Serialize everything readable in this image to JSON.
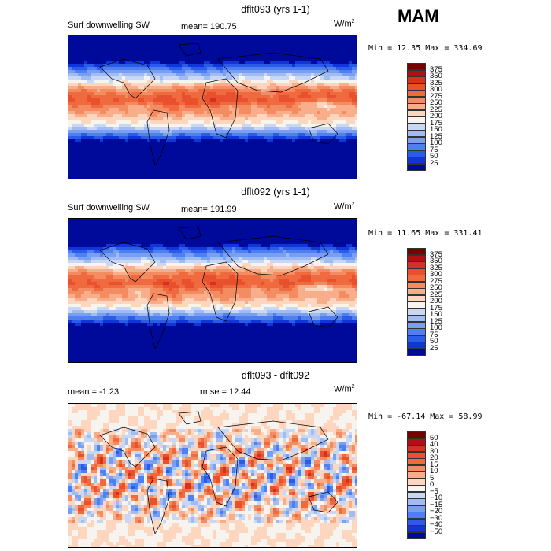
{
  "season": "MAM",
  "panels": [
    {
      "title": "dflt093 (yrs 1-1)",
      "left_label": "Surf downwelling SW",
      "mean_label": "mean= 190.75",
      "units": "W/m",
      "units_sup": "2",
      "minmax": "Min =  12.35 Max = 334.69"
    },
    {
      "title": "dflt092 (yrs 1-1)",
      "left_label": "Surf downwelling SW",
      "mean_label": "mean= 191.99",
      "units": "W/m",
      "units_sup": "2",
      "minmax": "Min =  11.65 Max = 331.41"
    },
    {
      "title": "dflt093 - dflt092",
      "left_label": "mean =   -1.23",
      "mean_label": "rmse =  12.44",
      "units": "W/m",
      "units_sup": "2",
      "minmax": "Min = -67.14 Max =  58.99"
    }
  ],
  "chart_data": [
    {
      "type": "heatmap",
      "title": "dflt093 (yrs 1-1)",
      "variable": "Surf downwelling SW",
      "units": "W/m2",
      "mean": 190.75,
      "min": 12.35,
      "max": 334.69,
      "colorbar_levels": [
        375,
        350,
        325,
        300,
        275,
        250,
        225,
        200,
        175,
        150,
        125,
        100,
        75,
        50,
        25
      ],
      "colorbar_colors": [
        "#7a0000",
        "#b01010",
        "#d8301e",
        "#e8502e",
        "#f06a40",
        "#f48c62",
        "#f8ae8a",
        "#fcd6bf",
        "#f7f3ee",
        "#c8d8f4",
        "#a0bcf0",
        "#7a9ef0",
        "#4f7ff0",
        "#2b5ce8",
        "#1035d8",
        "#000a9a"
      ]
    },
    {
      "type": "heatmap",
      "title": "dflt092 (yrs 1-1)",
      "variable": "Surf downwelling SW",
      "units": "W/m2",
      "mean": 191.99,
      "min": 11.65,
      "max": 331.41,
      "colorbar_levels": [
        375,
        350,
        325,
        300,
        275,
        250,
        225,
        200,
        175,
        150,
        125,
        100,
        75,
        50,
        25
      ],
      "colorbar_colors": [
        "#7a0000",
        "#b01010",
        "#d8301e",
        "#e8502e",
        "#f06a40",
        "#f48c62",
        "#f8ae8a",
        "#fcd6bf",
        "#f7f3ee",
        "#c8d8f4",
        "#a0bcf0",
        "#7a9ef0",
        "#4f7ff0",
        "#2b5ce8",
        "#1035d8",
        "#000a9a"
      ]
    },
    {
      "type": "heatmap",
      "title": "dflt093 - dflt092",
      "units": "W/m2",
      "mean": -1.23,
      "rmse": 12.44,
      "min": -67.14,
      "max": 58.99,
      "colorbar_levels": [
        50,
        40,
        30,
        20,
        15,
        10,
        5,
        0,
        -5,
        -10,
        -15,
        -20,
        -30,
        -40,
        -50
      ],
      "colorbar_colors": [
        "#7a0000",
        "#b01010",
        "#d8301e",
        "#e8502e",
        "#f06a40",
        "#f48c62",
        "#f8ae8a",
        "#fcd6bf",
        "#f7f3ee",
        "#c8d8f4",
        "#a0bcf0",
        "#7a9ef0",
        "#4f7ff0",
        "#2b5ce8",
        "#1035d8",
        "#000a9a"
      ]
    }
  ]
}
